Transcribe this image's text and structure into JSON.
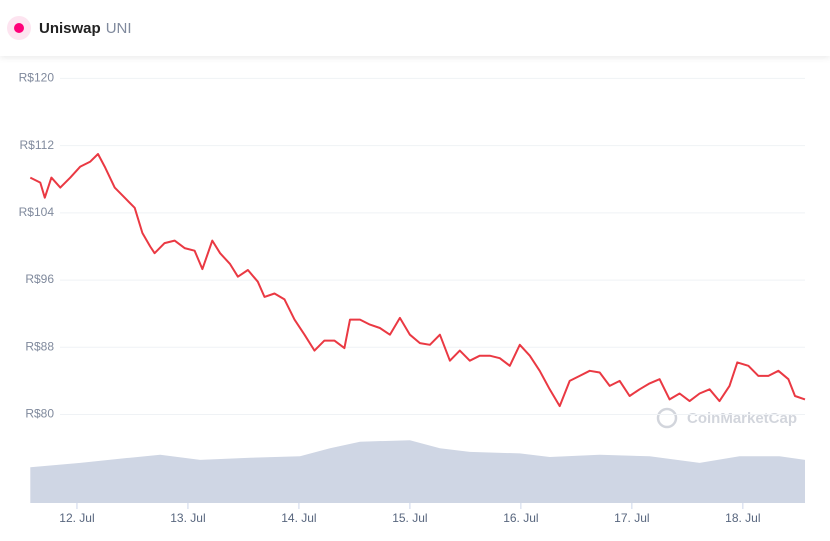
{
  "header": {
    "name": "Uniswap",
    "symbol": "UNI"
  },
  "watermark": "CoinMarketCap",
  "chart_data": {
    "type": "line",
    "x": [
      11.58,
      11.67,
      11.71,
      11.77,
      11.85,
      11.94,
      12.03,
      12.12,
      12.19,
      12.25,
      12.34,
      12.43,
      12.52,
      12.59,
      12.66,
      12.7,
      12.79,
      12.88,
      12.97,
      13.06,
      13.13,
      13.22,
      13.29,
      13.38,
      13.45,
      13.54,
      13.63,
      13.69,
      13.78,
      13.87,
      13.96,
      14.05,
      14.14,
      14.23,
      14.32,
      14.41,
      14.46,
      14.55,
      14.64,
      14.73,
      14.82,
      14.91,
      15.0,
      15.09,
      15.18,
      15.27,
      15.36,
      15.45,
      15.54,
      15.63,
      15.72,
      15.81,
      15.9,
      15.99,
      16.08,
      16.17,
      16.26,
      16.35,
      16.44,
      16.53,
      16.62,
      16.71,
      16.8,
      16.89,
      16.98,
      17.07,
      17.16,
      17.25,
      17.34,
      17.43,
      17.52,
      17.61,
      17.7,
      17.79,
      17.88,
      17.95,
      18.05,
      18.14,
      18.23,
      18.32,
      18.41,
      18.47,
      18.56
    ],
    "series": [
      {
        "color": "#ea3943",
        "values": [
          108.2,
          107.6,
          105.8,
          108.2,
          107.0,
          108.2,
          109.5,
          110.1,
          111.0,
          109.5,
          107.0,
          105.8,
          104.6,
          101.6,
          100.0,
          99.2,
          100.4,
          100.7,
          99.8,
          99.5,
          97.3,
          100.7,
          99.2,
          97.9,
          96.4,
          97.2,
          95.8,
          94.0,
          94.4,
          93.7,
          91.3,
          89.5,
          87.6,
          88.8,
          88.8,
          87.9,
          91.3,
          91.3,
          90.7,
          90.3,
          89.5,
          91.5,
          89.5,
          88.5,
          88.3,
          89.5,
          86.4,
          87.6,
          86.4,
          87.0,
          87.0,
          86.7,
          85.8,
          88.3,
          87.0,
          85.2,
          83.0,
          81.0,
          84.0,
          84.6,
          85.2,
          85.0,
          83.4,
          84.0,
          82.2,
          83.0,
          83.7,
          84.2,
          81.8,
          82.5,
          81.6,
          82.5,
          83.0,
          81.6,
          83.4,
          86.2,
          85.8,
          84.6,
          84.6,
          85.2,
          84.2,
          82.2,
          81.8
        ]
      }
    ],
    "xlim": [
      11.577,
      18.56
    ],
    "xticks": [
      {
        "value": 12,
        "label": "12. Jul"
      },
      {
        "value": 13,
        "label": "13. Jul"
      },
      {
        "value": 14,
        "label": "14. Jul"
      },
      {
        "value": 15,
        "label": "15. Jul"
      },
      {
        "value": 16,
        "label": "16. Jul"
      },
      {
        "value": 17,
        "label": "17. Jul"
      },
      {
        "value": 18,
        "label": "18. Jul"
      }
    ],
    "ylim": [
      75.3,
      121
    ],
    "yticks": [
      {
        "value": 80,
        "label": "R$80"
      },
      {
        "value": 88,
        "label": "R$88"
      },
      {
        "value": 96,
        "label": "R$96"
      },
      {
        "value": 104,
        "label": "R$104"
      },
      {
        "value": 112,
        "label": "R$112"
      },
      {
        "value": 120,
        "label": "R$120"
      }
    ],
    "grid": true,
    "volume": {
      "color": "#cfd6e4",
      "x": [
        11.58,
        12.03,
        12.48,
        12.75,
        13.11,
        13.56,
        14.01,
        14.28,
        14.55,
        15.0,
        15.27,
        15.54,
        15.99,
        16.26,
        16.71,
        17.16,
        17.61,
        17.97,
        18.33,
        18.56
      ],
      "values": [
        49,
        55,
        62,
        66,
        59,
        62,
        64,
        75,
        84,
        86,
        75,
        70,
        68,
        63,
        66,
        64,
        55,
        64,
        64,
        59
      ],
      "ylim": [
        0,
        100
      ]
    }
  }
}
